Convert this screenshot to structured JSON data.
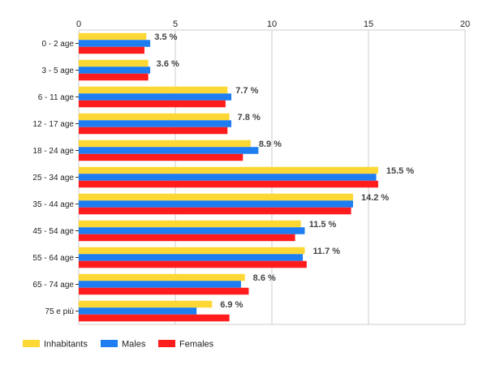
{
  "chart_data": {
    "type": "bar",
    "orientation": "horizontal",
    "categories": [
      "0 - 2 age",
      "3 - 5 age",
      "6 - 11 age",
      "12 - 17 age",
      "18 - 24 age",
      "25 - 34 age",
      "35 - 44 age",
      "45 - 54 age",
      "55 - 64 age",
      "65 - 74 age",
      "75 e più"
    ],
    "series": [
      {
        "name": "Inhabitants",
        "color": "#fdd835",
        "values": [
          3.5,
          3.6,
          7.7,
          7.8,
          8.9,
          15.5,
          14.2,
          11.5,
          11.7,
          8.6,
          6.9
        ]
      },
      {
        "name": "Males",
        "color": "#1e7df0",
        "values": [
          3.7,
          3.7,
          7.9,
          7.9,
          9.3,
          15.4,
          14.2,
          11.7,
          11.6,
          8.4,
          6.1
        ]
      },
      {
        "name": "Females",
        "color": "#ff1c1c",
        "values": [
          3.4,
          3.6,
          7.6,
          7.7,
          8.5,
          15.5,
          14.1,
          11.2,
          11.8,
          8.8,
          7.8
        ]
      }
    ],
    "data_labels": [
      "3.5 %",
      "3.6 %",
      "7.7 %",
      "7.8 %",
      "8.9 %",
      "15.5 %",
      "14.2 %",
      "11.5 %",
      "11.7 %",
      "8.6 %",
      "6.9 %"
    ],
    "x_ticks": [
      "0",
      "5",
      "10",
      "15",
      "20"
    ],
    "xlim": [
      0,
      20
    ],
    "grid": true,
    "legend_position": "bottom-left",
    "title": "",
    "xlabel": "",
    "ylabel": ""
  }
}
